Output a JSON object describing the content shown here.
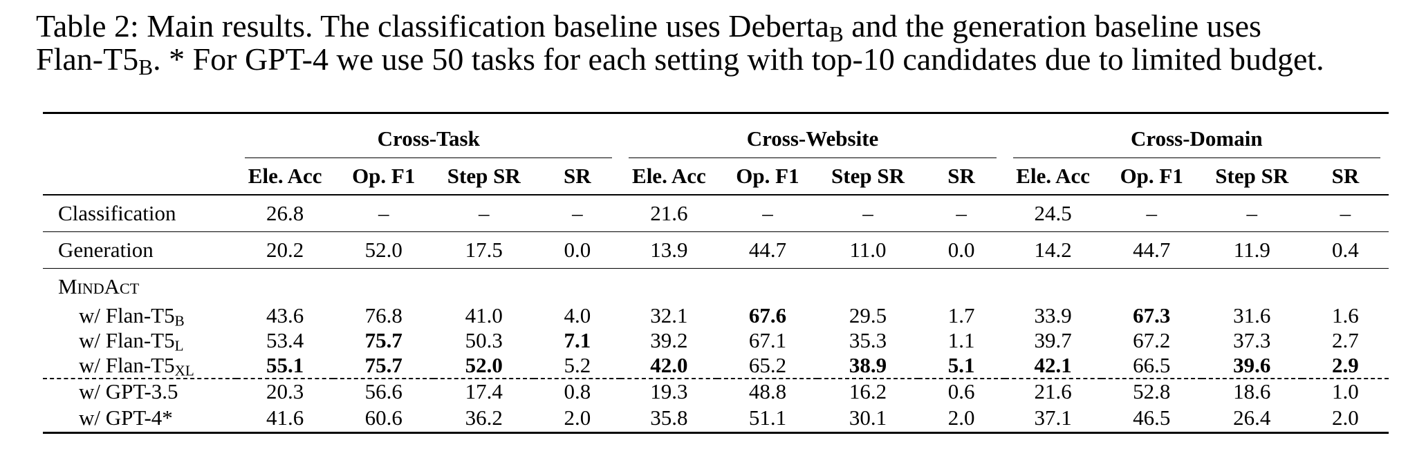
{
  "caption": {
    "line1_pre": "Table 2: Main results. The classification baseline uses Deberta",
    "line1_sub": "B",
    "line1_post": " and the generation baseline uses",
    "line2_pre": "Flan-T5",
    "line2_sub": "B",
    "line2_post": ". * For GPT-4 we use 50 tasks for each setting with top-10 candidates due to limited budget."
  },
  "groups": [
    "Cross-Task",
    "Cross-Website",
    "Cross-Domain"
  ],
  "columns": [
    "Ele. Acc",
    "Op. F1",
    "Step SR",
    "SR"
  ],
  "rows": {
    "classification": {
      "label": "Classification",
      "cells": [
        "26.8",
        "–",
        "–",
        "–",
        "21.6",
        "–",
        "–",
        "–",
        "24.5",
        "–",
        "–",
        "–"
      ]
    },
    "generation": {
      "label": "Generation",
      "cells": [
        "20.2",
        "52.0",
        "17.5",
        "0.0",
        "13.9",
        "44.7",
        "11.0",
        "0.0",
        "14.2",
        "44.7",
        "11.9",
        "0.4"
      ]
    },
    "mindact_header": "MindAct",
    "flan_b": {
      "label_pre": "w/ Flan-T5",
      "label_sub": "B",
      "cells": [
        "43.6",
        "76.8",
        "41.0",
        "4.0",
        "32.1",
        "67.6",
        "29.5",
        "1.7",
        "33.9",
        "67.3",
        "31.6",
        "1.6"
      ]
    },
    "flan_l": {
      "label_pre": "w/ Flan-T5",
      "label_sub": "L",
      "cells": [
        "53.4",
        "75.7",
        "50.3",
        "7.1",
        "39.2",
        "67.1",
        "35.3",
        "1.1",
        "39.7",
        "67.2",
        "37.3",
        "2.7"
      ]
    },
    "flan_xl": {
      "label_pre": "w/ Flan-T5",
      "label_sub": "XL",
      "cells": [
        "55.1",
        "75.7",
        "52.0",
        "5.2",
        "42.0",
        "65.2",
        "38.9",
        "5.1",
        "42.1",
        "66.5",
        "39.6",
        "2.9"
      ]
    },
    "gpt35": {
      "label": "w/ GPT-3.5",
      "cells": [
        "20.3",
        "56.6",
        "17.4",
        "0.8",
        "19.3",
        "48.8",
        "16.2",
        "0.6",
        "21.6",
        "52.8",
        "18.6",
        "1.0"
      ]
    },
    "gpt4": {
      "label": "w/ GPT-4*",
      "cells": [
        "41.6",
        "60.6",
        "36.2",
        "2.0",
        "35.8",
        "51.1",
        "30.1",
        "2.0",
        "37.1",
        "46.5",
        "26.4",
        "2.0"
      ]
    }
  },
  "bold": {
    "flan_b": [
      5,
      9
    ],
    "flan_l": [
      1,
      3
    ],
    "flan_xl": [
      0,
      1,
      2,
      4,
      6,
      7,
      8,
      10,
      11
    ]
  }
}
